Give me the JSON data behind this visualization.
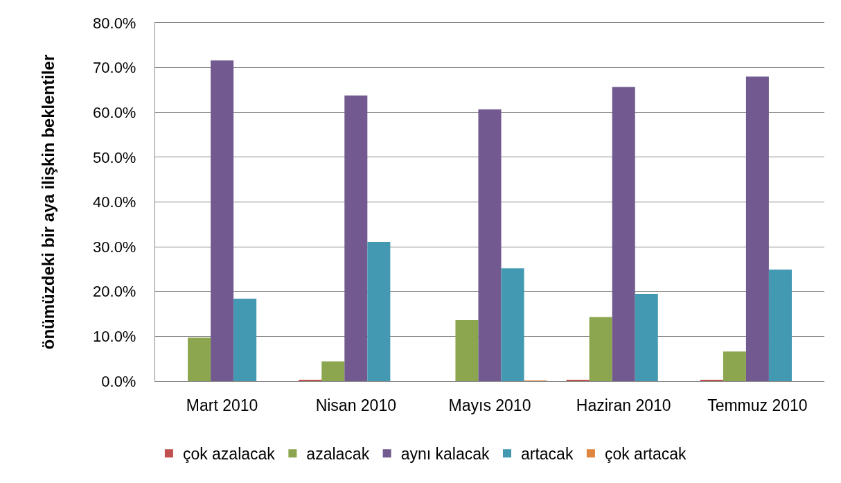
{
  "chart_data": {
    "type": "bar",
    "ylabel": "önümüzdeki bir aya ilişkin beklentiler",
    "categories": [
      "Mart 2010",
      "Nisan 2010",
      "Mayıs 2010",
      "Haziran 2010",
      "Temmuz 2010"
    ],
    "series": [
      {
        "name": "çok azalacak",
        "color": "#c0504d",
        "values": [
          0,
          0.2,
          0,
          0.2,
          0.2
        ]
      },
      {
        "name": "azalacak",
        "color": "#8ba64e",
        "values": [
          9.7,
          4.4,
          13.6,
          14.3,
          6.6
        ]
      },
      {
        "name": "aynı kalacak",
        "color": "#72598f",
        "values": [
          71.6,
          63.8,
          60.7,
          65.7,
          68.0
        ]
      },
      {
        "name": "artacak",
        "color": "#4399b2",
        "values": [
          18.4,
          31.1,
          25.2,
          19.5,
          24.9
        ]
      },
      {
        "name": "çok artacak",
        "color": "#e0853d",
        "values": [
          0,
          0,
          0.1,
          0,
          0
        ]
      }
    ],
    "ylim": [
      0,
      80
    ],
    "yticks": [
      {
        "value": 0,
        "label": "0.0%"
      },
      {
        "value": 10,
        "label": "10.0%"
      },
      {
        "value": 20,
        "label": "20.0%"
      },
      {
        "value": 30,
        "label": "30.0%"
      },
      {
        "value": 40,
        "label": "40.0%"
      },
      {
        "value": 50,
        "label": "50.0%"
      },
      {
        "value": 60,
        "label": "60.0%"
      },
      {
        "value": 70,
        "label": "70.0%"
      },
      {
        "value": 80,
        "label": "80.0%"
      }
    ],
    "grid": "y",
    "legend": "bottom"
  }
}
